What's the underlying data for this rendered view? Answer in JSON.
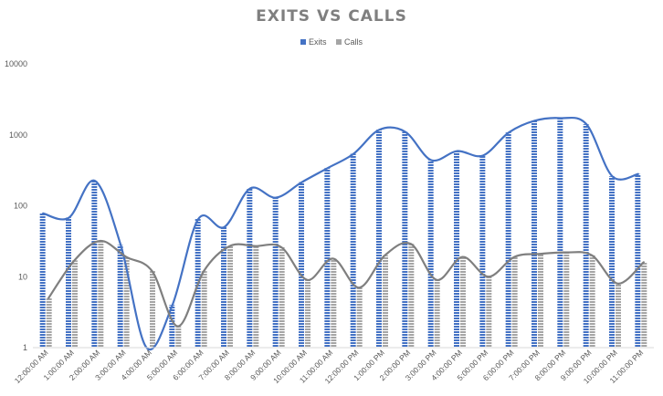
{
  "chart_data": {
    "type": "bar",
    "title": "EXITS VS CALLS",
    "xlabel": "",
    "ylabel": "",
    "y_scale": "log",
    "ylim": [
      1,
      10000
    ],
    "y_ticks": [
      "1",
      "10",
      "100",
      "1000",
      "10000"
    ],
    "legend_position": "top",
    "grid": false,
    "categories": [
      "12:00:00 AM",
      "1:00:00 AM",
      "2:00:00 AM",
      "3:00:00 AM",
      "4:00:00 AM",
      "5:00:00 AM",
      "6:00:00 AM",
      "7:00:00 AM",
      "8:00:00 AM",
      "9:00:00 AM",
      "10:00:00 AM",
      "11:00:00 AM",
      "12:00:00 PM",
      "1:00:00 PM",
      "2:00:00 PM",
      "3:00:00 PM",
      "4:00:00 PM",
      "5:00:00 PM",
      "6:00:00 PM",
      "7:00:00 PM",
      "8:00:00 PM",
      "9:00:00 PM",
      "10:00:00 PM",
      "11:00:00 PM"
    ],
    "series": [
      {
        "name": "Exits",
        "color": "#4472c4",
        "line_color": "#4472c4",
        "values": [
          78,
          68,
          225,
          28,
          1,
          4,
          65,
          50,
          175,
          130,
          215,
          340,
          540,
          1180,
          1100,
          440,
          590,
          510,
          1080,
          1580,
          1720,
          1410,
          260,
          280
        ]
      },
      {
        "name": "Calls",
        "color": "#a5a5a5",
        "line_color": "#7f7f7f",
        "values": [
          5,
          17,
          32,
          19,
          12,
          2,
          12,
          27,
          27,
          26,
          9,
          18,
          7,
          20,
          29,
          9,
          19,
          10,
          19,
          21,
          22,
          20,
          8,
          16
        ]
      }
    ]
  }
}
